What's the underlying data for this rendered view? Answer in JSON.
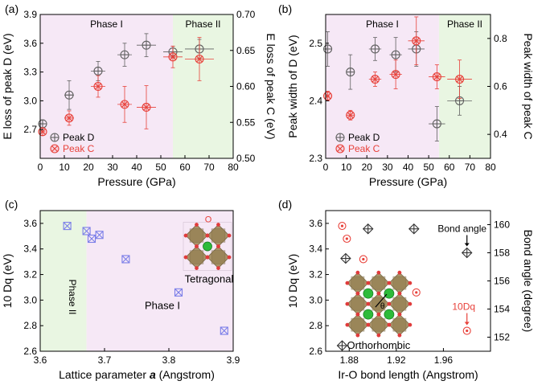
{
  "colors": {
    "peak_d": "#606060",
    "peak_c": "#e8413a",
    "phase_i_bg": "#f6e8f6",
    "phase_ii_bg": "#e9f6e2",
    "blue_marker": "#7b7ee8",
    "axis": "#000000"
  },
  "chart_data": [
    {
      "panel_label": "(a)",
      "type": "scatter",
      "xlabel": "Pressure (GPa)",
      "ylabel": "E loss of peak D (eV)",
      "y2label": "E loss of peak C (eV)",
      "xlim": [
        0,
        80
      ],
      "ylim": [
        2.4,
        3.9
      ],
      "y2lim": [
        0.5,
        0.7
      ],
      "xticks": [
        "0",
        "10",
        "20",
        "30",
        "40",
        "50",
        "60",
        "70",
        "80"
      ],
      "yticks": [
        "2.7",
        "3.0",
        "3.3",
        "3.6",
        "3.9"
      ],
      "y2ticks": [
        "0.50",
        "0.55",
        "0.60",
        "0.65",
        "0.70"
      ],
      "regions": [
        {
          "label": "Phase I",
          "from": 0,
          "to": 55
        },
        {
          "label": "Phase II",
          "from": 55,
          "to": 80
        }
      ],
      "legend_placement": "bottom-left",
      "series": [
        {
          "name": "Peak D",
          "marker": "circle-plus",
          "axis": "left",
          "x": [
            1,
            12,
            24,
            35,
            44,
            55,
            66
          ],
          "y": [
            2.76,
            3.06,
            3.31,
            3.48,
            3.58,
            3.51,
            3.54
          ],
          "xerr": [
            1,
            2,
            3,
            3,
            4,
            4,
            6
          ],
          "yerr": [
            0.04,
            0.15,
            0.1,
            0.12,
            0.12,
            0.06,
            0.1
          ]
        },
        {
          "name": "Peak C",
          "marker": "circle-x",
          "axis": "right",
          "x": [
            1,
            12,
            24,
            35,
            44,
            55,
            66
          ],
          "y": [
            0.537,
            0.556,
            0.6,
            0.575,
            0.571,
            0.641,
            0.638
          ],
          "xerr": [
            1,
            2,
            3,
            3,
            4,
            4,
            6
          ],
          "yerr": [
            0.005,
            0.01,
            0.015,
            0.025,
            0.03,
            0.015,
            0.03
          ]
        }
      ]
    },
    {
      "panel_label": "(b)",
      "type": "scatter",
      "xlabel": "Pressure (GPa)",
      "ylabel": "Peak width of D (eV)",
      "y2label": "Peak width of peak C",
      "xlim": [
        0,
        80
      ],
      "ylim": [
        2.3,
        2.55
      ],
      "y2lim": [
        0.3,
        0.9
      ],
      "xticks": [
        "0",
        "10",
        "20",
        "30",
        "40",
        "50",
        "60",
        "70",
        "80"
      ],
      "yticks": [
        "2.3",
        "2.4",
        "2.5"
      ],
      "y2ticks": [
        "0.4",
        "0.6",
        "0.8"
      ],
      "regions": [
        {
          "label": "Phase I",
          "from": 0,
          "to": 55
        },
        {
          "label": "Phase II",
          "from": 55,
          "to": 80
        }
      ],
      "legend_placement": "bottom-left",
      "series": [
        {
          "name": "Peak D",
          "marker": "circle-plus",
          "axis": "left",
          "x": [
            1,
            12,
            24,
            34,
            44,
            54,
            65
          ],
          "y": [
            2.49,
            2.45,
            2.49,
            2.48,
            2.49,
            2.36,
            2.4
          ],
          "xerr": [
            1,
            2,
            3,
            3,
            4,
            4,
            6
          ],
          "yerr": [
            0.03,
            0.03,
            0.02,
            0.03,
            0.03,
            0.03,
            0.025
          ]
        },
        {
          "name": "Peak C",
          "marker": "circle-x",
          "axis": "right",
          "x": [
            1,
            12,
            24,
            34,
            44,
            54,
            65
          ],
          "y": [
            0.56,
            0.48,
            0.63,
            0.65,
            0.79,
            0.64,
            0.63
          ],
          "xerr": [
            1,
            2,
            3,
            3,
            4,
            4,
            6
          ],
          "yerr": [
            0.02,
            0.02,
            0.03,
            0.06,
            0.1,
            0.05,
            0.08
          ]
        }
      ]
    },
    {
      "panel_label": "(c)",
      "type": "scatter",
      "xlabel_text": "Lattice parameter ",
      "xlabel_var": "a",
      "xlabel_units": " (Angstrom)",
      "ylabel": "10 Dq (eV)",
      "xlim": [
        3.6,
        3.9
      ],
      "ylim": [
        2.6,
        3.7
      ],
      "xticks": [
        "3.6",
        "3.7",
        "3.8",
        "3.9"
      ],
      "yticks": [
        "2.6",
        "2.8",
        "3.0",
        "3.2",
        "3.4",
        "3.6"
      ],
      "regions": [
        {
          "label": "Phase II",
          "from": 3.6,
          "to": 3.672
        },
        {
          "label": "Phase I",
          "from": 3.672,
          "to": 3.9
        }
      ],
      "annotation": "Tetragonal",
      "atom_label": "O",
      "series": [
        {
          "name": "",
          "marker": "square-x",
          "x": [
            3.642,
            3.672,
            3.68,
            3.692,
            3.733,
            3.815,
            3.886
          ],
          "y": [
            3.58,
            3.54,
            3.48,
            3.51,
            3.32,
            3.06,
            2.76
          ]
        }
      ]
    },
    {
      "panel_label": "(d)",
      "type": "scatter",
      "xlabel": "Ir-O bond length (Angstrom)",
      "ylabel": "10 Dq (eV)",
      "y2label": "Bond angle (degree)",
      "xlim": [
        1.86,
        2.0
      ],
      "ylim": [
        2.6,
        3.7
      ],
      "y2lim": [
        151,
        161
      ],
      "xticks": [
        "1.88",
        "1.92",
        "1.96"
      ],
      "yticks": [
        "2.6",
        "2.8",
        "3.0",
        "3.2",
        "3.4",
        "3.6"
      ],
      "y2ticks": [
        "152",
        "154",
        "156",
        "158",
        "160"
      ],
      "annotations": {
        "bond_angle": "Bond angle",
        "tendq": "10Dq",
        "structure": "Orthorhombic",
        "angle_symbol": "θ"
      },
      "series": [
        {
          "name": "10Dq",
          "marker": "circle-dot",
          "axis": "left",
          "x": [
            1.874,
            1.878,
            1.892,
            1.937,
            1.98
          ],
          "y": [
            3.58,
            3.48,
            3.32,
            3.06,
            2.76
          ]
        },
        {
          "name": "Bond angle",
          "marker": "diamond-plus",
          "axis": "right",
          "x": [
            1.874,
            1.877,
            1.896,
            1.935,
            1.98
          ],
          "y": [
            151.4,
            157.6,
            159.7,
            159.7,
            158.0
          ]
        }
      ]
    }
  ]
}
